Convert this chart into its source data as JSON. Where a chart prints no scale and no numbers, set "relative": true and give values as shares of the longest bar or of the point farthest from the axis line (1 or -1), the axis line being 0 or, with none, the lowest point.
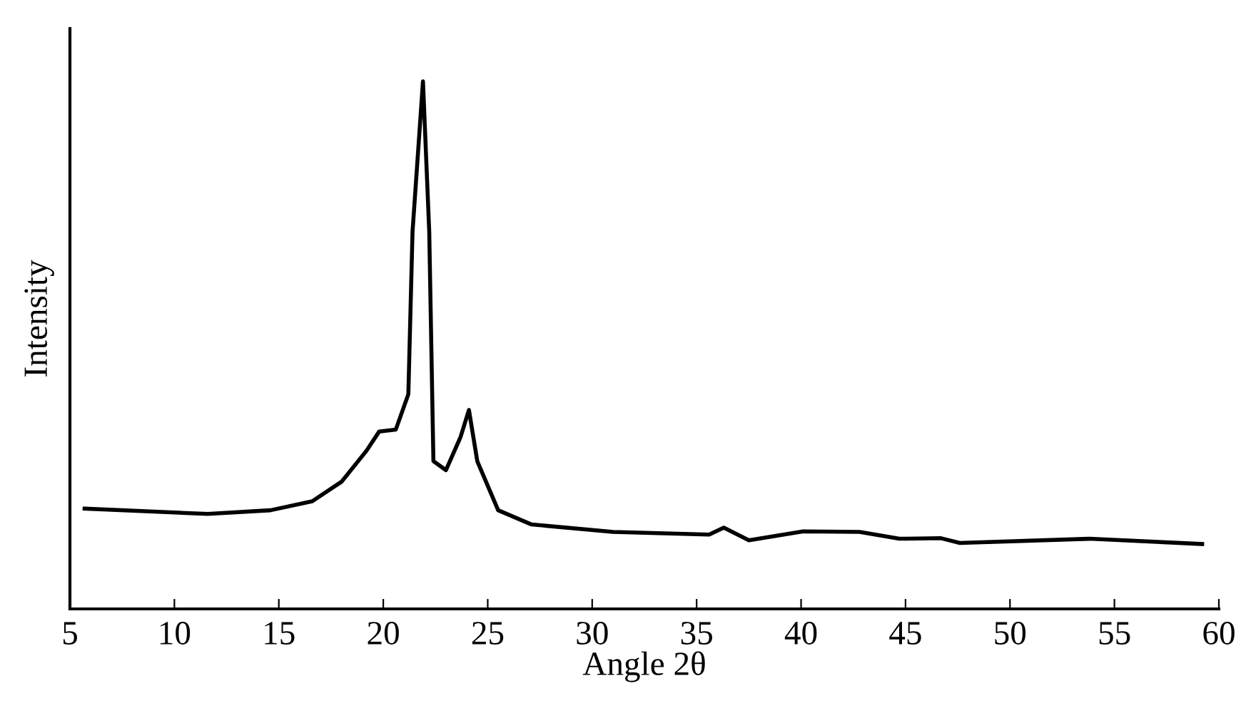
{
  "chart_data": {
    "type": "line",
    "xlabel": "Angle 2θ",
    "ylabel": "Intensity",
    "relative": true,
    "xlim": [
      5,
      60
    ],
    "xticks": [
      5,
      10,
      15,
      20,
      25,
      30,
      35,
      40,
      45,
      50,
      55,
      60
    ],
    "grid": false,
    "legend": false,
    "series": [
      {
        "color": "#000000",
        "x": [
          5.7,
          11.6,
          14.6,
          16.6,
          18.0,
          19.2,
          19.8,
          20.6,
          21.2,
          21.4,
          21.9,
          22.2,
          22.4,
          23.0,
          23.7,
          24.1,
          24.5,
          25.5,
          27.1,
          31.0,
          35.6,
          36.3,
          37.5,
          40.1,
          42.8,
          44.7,
          46.7,
          47.6,
          53.8,
          59.2
        ],
        "values": [
          0.19,
          0.18,
          0.187,
          0.204,
          0.241,
          0.3,
          0.336,
          0.34,
          0.407,
          0.715,
          1.0,
          0.715,
          0.28,
          0.263,
          0.326,
          0.377,
          0.28,
          0.187,
          0.16,
          0.146,
          0.141,
          0.154,
          0.13,
          0.147,
          0.146,
          0.133,
          0.134,
          0.125,
          0.133,
          0.123
        ]
      }
    ]
  }
}
